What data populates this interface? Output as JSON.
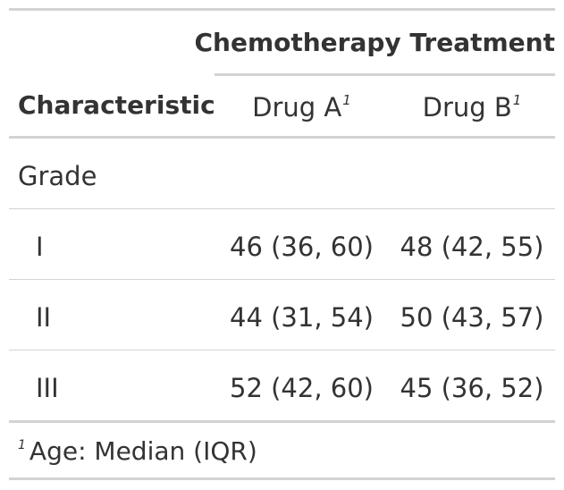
{
  "table": {
    "spanner": "Chemotherapy Treatment",
    "stub_header": "Characteristic",
    "columns": [
      {
        "label": "Drug A",
        "footnote_mark": "1"
      },
      {
        "label": "Drug B",
        "footnote_mark": "1"
      }
    ],
    "group": {
      "label": "Grade"
    },
    "rows": [
      {
        "label": "I",
        "drug_a": "46 (36, 60)",
        "drug_b": "48 (42, 55)"
      },
      {
        "label": "II",
        "drug_a": "44 (31, 54)",
        "drug_b": "50 (43, 57)"
      },
      {
        "label": "III",
        "drug_a": "52 (42, 60)",
        "drug_b": "45 (36, 52)"
      }
    ],
    "footnote": {
      "mark": "1",
      "text": "Age: Median (IQR)"
    }
  },
  "colors": {
    "text": "#333333",
    "rule": "#d3d3d3",
    "background": "#ffffff"
  }
}
